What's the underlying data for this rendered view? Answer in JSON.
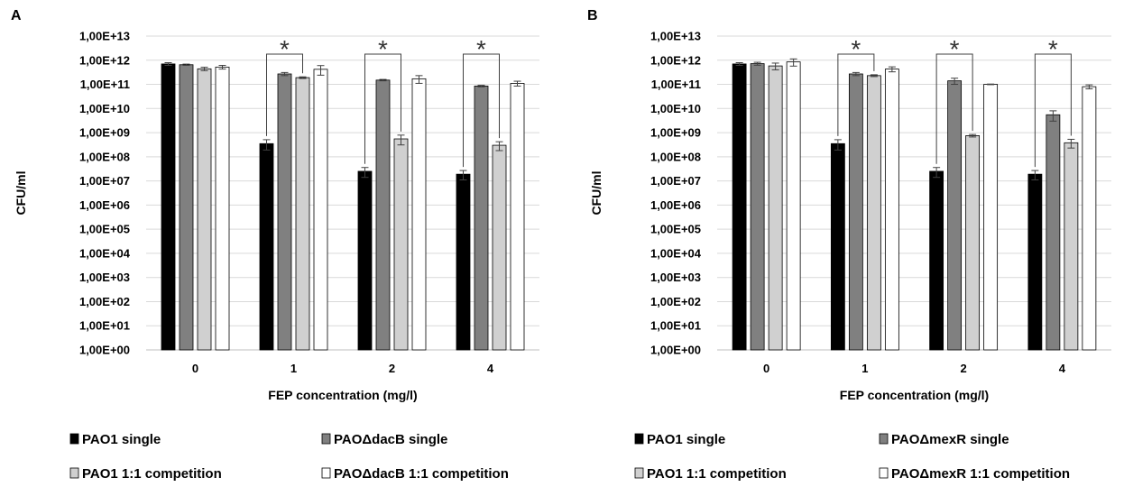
{
  "chart_data": [
    {
      "panel": "A",
      "type": "bar",
      "yscale": "log",
      "ylim": [
        1,
        10000000000000
      ],
      "ylabel": "CFU/ml",
      "xlabel": "FEP concentration (mg/l)",
      "categories": [
        "0",
        "1",
        "2",
        "4"
      ],
      "ytick_labels": [
        "1,00E+00",
        "1,00E+01",
        "1,00E+02",
        "1,00E+03",
        "1,00E+04",
        "1,00E+05",
        "1,00E+06",
        "1,00E+07",
        "1,00E+08",
        "1,00E+09",
        "1,00E+10",
        "1,00E+11",
        "1,00E+12",
        "1,00E+13"
      ],
      "grid": true,
      "legend_position": "bottom",
      "series": [
        {
          "name": "PAO1 single",
          "color": "#000000",
          "values": [
            700000000000,
            350000000,
            25000000,
            19000000
          ],
          "errors": [
            90000000000,
            160000000,
            11000000,
            8000000
          ]
        },
        {
          "name": "PAOΔdacB single",
          "color": "#808080",
          "values": [
            650000000000,
            270000000000,
            150000000000,
            85000000000
          ],
          "errors": [
            40000000000,
            40000000000,
            10000000000,
            6000000000
          ]
        },
        {
          "name": "PAO1 1:1 competition",
          "color": "#d0d0d0",
          "values": [
            440000000000,
            190000000000,
            550000000,
            300000000
          ],
          "errors": [
            70000000000,
            15000000000,
            240000000,
            120000000
          ]
        },
        {
          "name": "PAOΔdacB 1:1 competition",
          "color": "#ffffff",
          "values": [
            520000000000,
            420000000000,
            170000000000,
            110000000000
          ],
          "errors": [
            90000000000,
            180000000000,
            60000000000,
            25000000000
          ]
        }
      ],
      "significance": [
        {
          "category": "1",
          "label": "*"
        },
        {
          "category": "2",
          "label": "*"
        },
        {
          "category": "4",
          "label": "*"
        }
      ]
    },
    {
      "panel": "B",
      "type": "bar",
      "yscale": "log",
      "ylim": [
        1,
        10000000000000
      ],
      "ylabel": "CFU/ml",
      "xlabel": "FEP concentration (mg/l)",
      "categories": [
        "0",
        "1",
        "2",
        "4"
      ],
      "ytick_labels": [
        "1,00E+00",
        "1,00E+01",
        "1,00E+02",
        "1,00E+03",
        "1,00E+04",
        "1,00E+05",
        "1,00E+06",
        "1,00E+07",
        "1,00E+08",
        "1,00E+09",
        "1,00E+10",
        "1,00E+11",
        "1,00E+12",
        "1,00E+13"
      ],
      "grid": true,
      "legend_position": "bottom",
      "series": [
        {
          "name": "PAO1 single",
          "color": "#000000",
          "values": [
            700000000000,
            350000000,
            25000000,
            19000000
          ],
          "errors": [
            90000000000,
            160000000,
            11000000,
            8000000
          ]
        },
        {
          "name": "PAOΔmexR single",
          "color": "#808080",
          "values": [
            720000000000,
            270000000000,
            140000000000,
            5500000000
          ],
          "errors": [
            100000000000,
            40000000000,
            40000000000,
            2500000000
          ]
        },
        {
          "name": "PAO1 1:1 competition",
          "color": "#d0d0d0",
          "values": [
            580000000000,
            230000000000,
            750000000,
            380000000
          ],
          "errors": [
            180000000000,
            20000000000,
            90000000,
            150000000
          ]
        },
        {
          "name": "PAOΔmexR 1:1 competition",
          "color": "#ffffff",
          "values": [
            850000000000,
            430000000000,
            100000000000,
            80000000000
          ],
          "errors": [
            280000000000,
            100000000000,
            3000000000,
            15000000000
          ]
        }
      ],
      "significance": [
        {
          "category": "1",
          "label": "*"
        },
        {
          "category": "2",
          "label": "*"
        },
        {
          "category": "4",
          "label": "*"
        }
      ]
    }
  ]
}
